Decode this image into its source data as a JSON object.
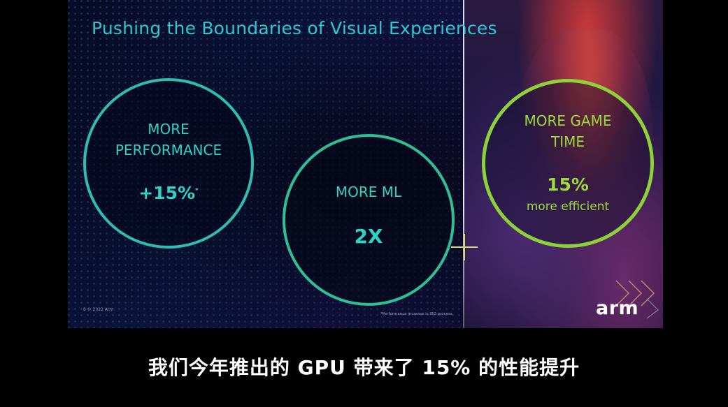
{
  "slide": {
    "title": "Pushing the Boundaries of Visual Experiences",
    "circles": [
      {
        "label_line1": "MORE",
        "label_line2": "PERFORMANCE",
        "value": "+15%",
        "footnote_mark": "*"
      },
      {
        "label": "MORE ML",
        "value": "2X"
      },
      {
        "label_line1": "MORE GAME",
        "label_line2": "TIME",
        "value": "15%",
        "sub": "more efficient"
      }
    ],
    "footer_left": "8   © 2022 Arm",
    "footer_note": "*Performance increase is ISO process",
    "logo_text": "arm"
  },
  "caption": "我们今年推出的 GPU 带来了 15% 的性能提升",
  "colors": {
    "teal": "#2fc6cf",
    "green": "#8ed23a",
    "crosshair": "#d6d86a"
  }
}
